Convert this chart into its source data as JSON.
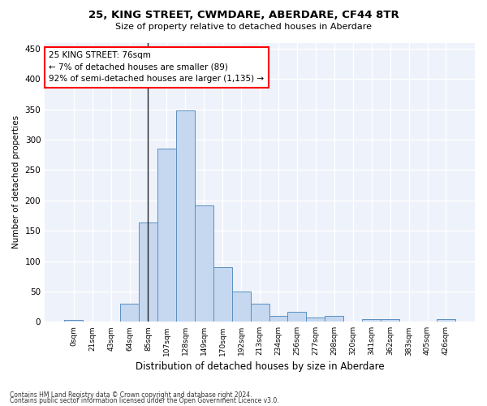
{
  "title_line1": "25, KING STREET, CWMDARE, ABERDARE, CF44 8TR",
  "title_line2": "Size of property relative to detached houses in Aberdare",
  "xlabel": "Distribution of detached houses by size in Aberdare",
  "ylabel": "Number of detached properties",
  "bar_color": "#c5d8f0",
  "bar_edge_color": "#5a8fc0",
  "background_color": "#eef2fb",
  "grid_color": "#ffffff",
  "categories": [
    "0sqm",
    "21sqm",
    "43sqm",
    "64sqm",
    "85sqm",
    "107sqm",
    "128sqm",
    "149sqm",
    "170sqm",
    "192sqm",
    "213sqm",
    "234sqm",
    "256sqm",
    "277sqm",
    "298sqm",
    "320sqm",
    "341sqm",
    "362sqm",
    "383sqm",
    "405sqm",
    "426sqm"
  ],
  "values": [
    3,
    0,
    0,
    30,
    163,
    286,
    348,
    192,
    90,
    50,
    30,
    10,
    17,
    7,
    10,
    0,
    5,
    5,
    0,
    0,
    5
  ],
  "ylim": [
    0,
    460
  ],
  "yticks": [
    0,
    50,
    100,
    150,
    200,
    250,
    300,
    350,
    400,
    450
  ],
  "annotation_title": "25 KING STREET: 76sqm",
  "annotation_line2": "← 7% of detached houses are smaller (89)",
  "annotation_line3": "92% of semi-detached houses are larger (1,135) →",
  "marker_bar_index": 4,
  "footer_line1": "Contains HM Land Registry data © Crown copyright and database right 2024.",
  "footer_line2": "Contains public sector information licensed under the Open Government Licence v3.0."
}
